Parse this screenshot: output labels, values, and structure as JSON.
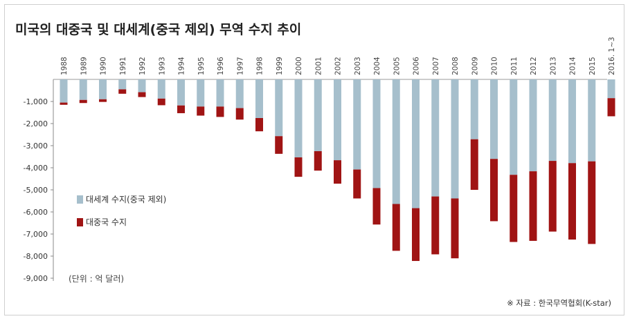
{
  "chart_data": {
    "type": "bar",
    "title": "미국의 대중국 및 대세계(중국 제외) 무역 수지 추이",
    "categories": [
      "1988",
      "1989",
      "1990",
      "1991",
      "1992",
      "1993",
      "1994",
      "1995",
      "1996",
      "1997",
      "1998",
      "1999",
      "2000",
      "2001",
      "2002",
      "2003",
      "2004",
      "2005",
      "2006",
      "2007",
      "2008",
      "2009",
      "2010",
      "2011",
      "2012",
      "2013",
      "2014",
      "2015",
      "2016. 1~3"
    ],
    "series": [
      {
        "name": "대세계 수지(중국 제외)",
        "color": "#a6bfcc",
        "values": [
          -1050,
          -930,
          -900,
          -450,
          -580,
          -870,
          -1180,
          -1230,
          -1230,
          -1300,
          -1750,
          -2570,
          -3530,
          -3250,
          -3660,
          -4080,
          -4920,
          -5640,
          -5830,
          -5300,
          -5390,
          -2710,
          -3600,
          -4320,
          -4160,
          -3690,
          -3790,
          -3710,
          -850
        ]
      },
      {
        "name": "대중국 수지",
        "color": "#a01414",
        "values": [
          -100,
          -140,
          -120,
          -200,
          -220,
          -300,
          -350,
          -410,
          -470,
          -520,
          -600,
          -800,
          -880,
          -880,
          -1060,
          -1310,
          -1650,
          -2120,
          -2390,
          -2620,
          -2710,
          -2290,
          -2820,
          -3040,
          -3150,
          -3200,
          -3460,
          -3740,
          -820
        ]
      }
    ],
    "stacked": true,
    "yticks": [
      "-1,000",
      "-2,000",
      "-3,000",
      "-4,000",
      "-5,000",
      "-6,000",
      "-7,000",
      "-8,000",
      "-9,000"
    ],
    "ylim": [
      -9000,
      0
    ],
    "unit_note": "(단위 : 억 달러)",
    "legend_position": "left-middle",
    "grid": false
  },
  "source": "※ 자료 : 한국무역협회(K-star)"
}
